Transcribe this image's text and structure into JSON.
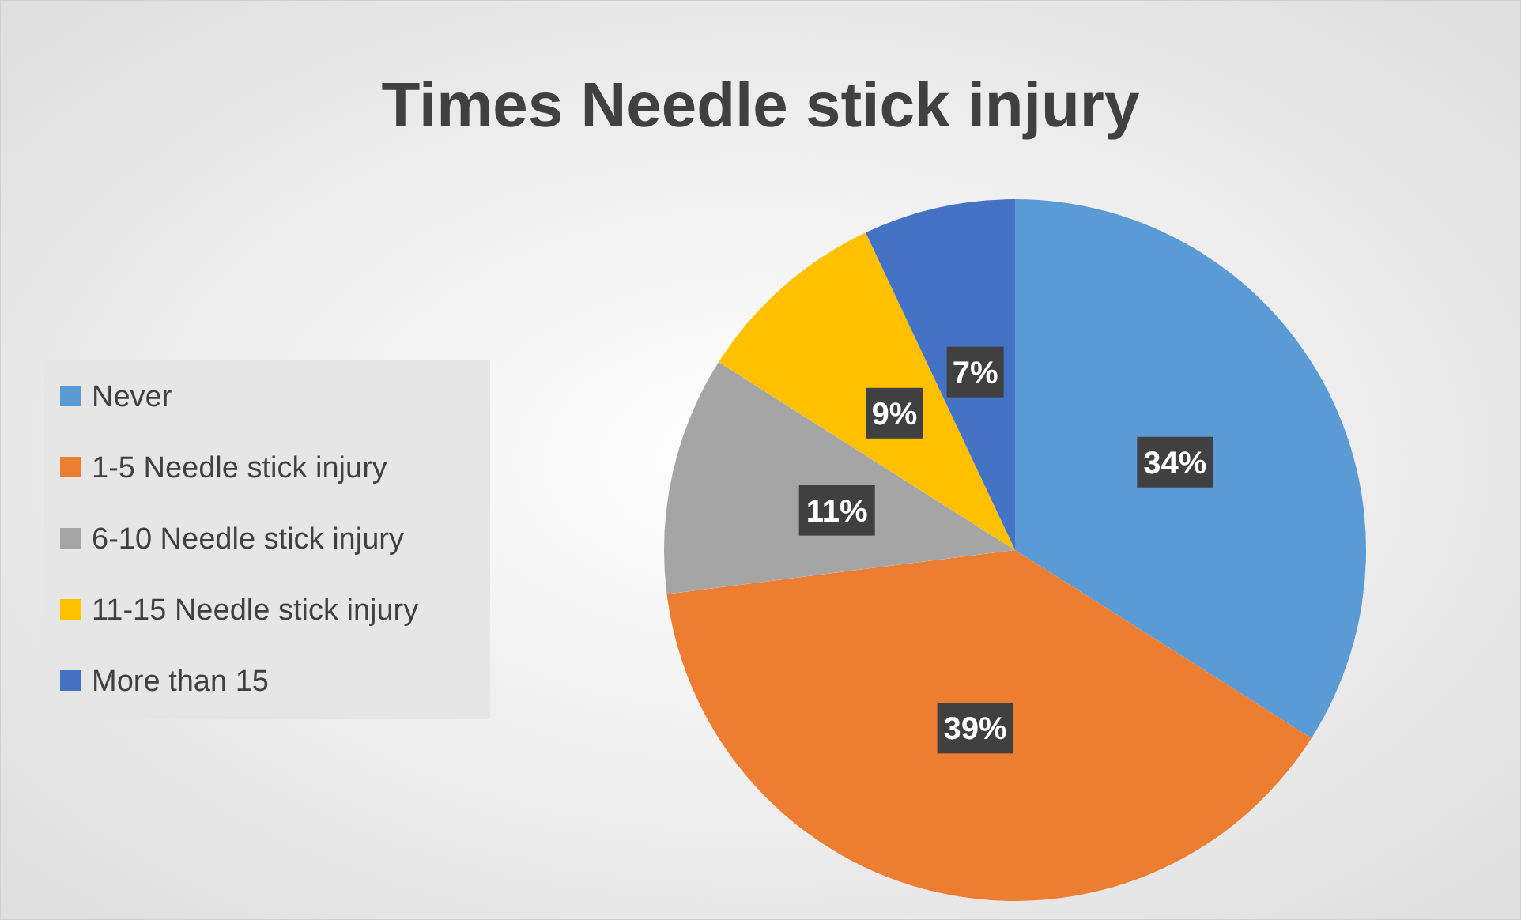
{
  "chart_data": {
    "type": "pie",
    "title": "Times Needle stick injury",
    "categories": [
      "Never",
      "1-5 Needle stick injury",
      "6-10 Needle stick injury",
      "11-15 Needle stick injury",
      "More than 15"
    ],
    "values": [
      34,
      39,
      11,
      9,
      7
    ],
    "colors": [
      "#5b9bd5",
      "#ed7d31",
      "#a5a5a5",
      "#ffc000",
      "#4472c4"
    ],
    "value_labels": [
      "34%",
      "39%",
      "11%",
      "9%",
      "7%"
    ],
    "legend": "left"
  }
}
